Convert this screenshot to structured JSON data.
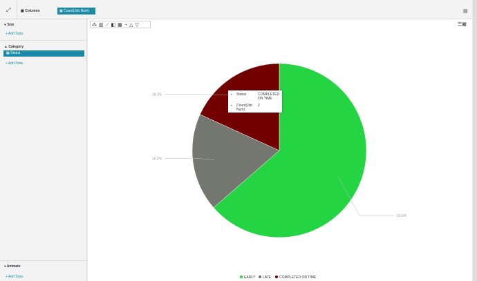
{
  "toolbar": {
    "columns": "Columns",
    "measure": "Count(Job Num)"
  },
  "panel": {
    "size": {
      "title": "Size",
      "add": "Add Data"
    },
    "category": {
      "title": "Category",
      "field": "Status",
      "add": "Add Data"
    },
    "animate": {
      "title": "Animate",
      "add": "Add Data"
    }
  },
  "tooltip": {
    "rows": [
      {
        "label": "Status",
        "value": "COMPLETED ON TIME"
      },
      {
        "label": "Count(Job Num)",
        "value": 2
      }
    ]
  },
  "chart_data": {
    "type": "pie",
    "categories": [
      "EARLY",
      "LATE",
      "COMPLETED ON TIME"
    ],
    "values": [
      63.6,
      18.2,
      18.2
    ],
    "value_labels": [
      "63.6%",
      "18.2%",
      "18.2%"
    ],
    "colors": [
      "#25d443",
      "#747770",
      "#720000"
    ],
    "legend": "bottom"
  }
}
